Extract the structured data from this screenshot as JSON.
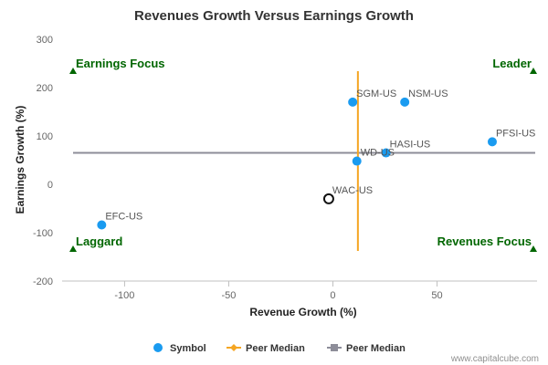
{
  "chart_data": {
    "type": "scatter",
    "title": "Revenues Growth Versus Earnings Growth",
    "xlabel": "Revenue Growth (%)",
    "ylabel": "Earnings Growth (%)",
    "xlim": [
      -130,
      98
    ],
    "ylim": [
      -200,
      300
    ],
    "xticks": [
      -100,
      -50,
      0,
      50
    ],
    "xtick_labels": [
      "-100",
      "-50",
      "0",
      "50"
    ],
    "yticks": [
      -200,
      -100,
      0,
      100,
      200,
      300
    ],
    "ytick_labels": [
      "-200",
      "-100",
      "0",
      "100",
      "200",
      "300"
    ],
    "grid": false,
    "legend_position": "bottom-center",
    "points": [
      {
        "label": "SGM-US",
        "x": 9.5,
        "y": 170
      },
      {
        "label": "NSM-US",
        "x": 34.5,
        "y": 170
      },
      {
        "label": "PFSI-US",
        "x": 76.5,
        "y": 88
      },
      {
        "label": "HASI-US",
        "x": 25.5,
        "y": 65
      },
      {
        "label": "WD-US",
        "x": 11.5,
        "y": 48
      },
      {
        "label": "EFC-US",
        "x": -111,
        "y": -84
      },
      {
        "label": "WAC-US",
        "x": -2,
        "y": -30,
        "highlight": true
      }
    ],
    "peer_median_x": 12,
    "peer_median_y": 65,
    "quadrants": {
      "top_left": "Earnings Focus",
      "top_right": "Leader",
      "bottom_left": "Laggard",
      "bottom_right": "Revenues Focus"
    },
    "legend": [
      {
        "label": "Symbol",
        "marker": "circle",
        "color": "#1a9bf0"
      },
      {
        "label": "Peer Median",
        "marker": "diamond",
        "color": "#f5a623"
      },
      {
        "label": "Peer Median",
        "marker": "square",
        "color": "#8d8d99"
      }
    ],
    "colors": {
      "point": "#1a9bf0",
      "highlight_stroke": "#111111",
      "vertical_median": "#f5a623",
      "horizontal_median": "#8d8d99",
      "quadrant": "#006600"
    }
  },
  "credit": "www.capitalcube.com"
}
